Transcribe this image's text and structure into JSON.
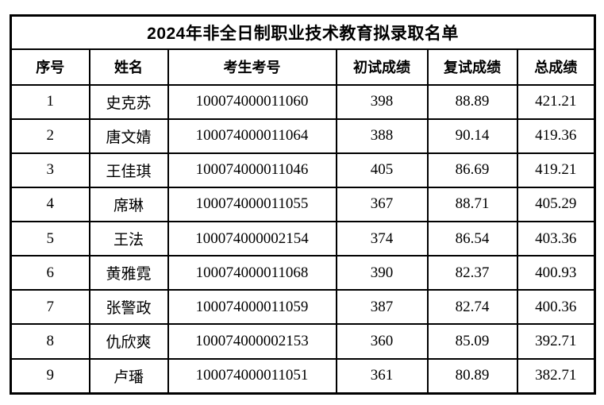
{
  "table": {
    "title": "2024年非全日制职业技术教育拟录取名单",
    "headers": [
      "序号",
      "姓名",
      "考生考号",
      "初试成绩",
      "复试成绩",
      "总成绩"
    ],
    "rows": [
      [
        "1",
        "史克苏",
        "100074000011060",
        "398",
        "88.89",
        "421.21"
      ],
      [
        "2",
        "唐文婧",
        "100074000011064",
        "388",
        "90.14",
        "419.36"
      ],
      [
        "3",
        "王佳琪",
        "100074000011046",
        "405",
        "86.69",
        "419.21"
      ],
      [
        "4",
        "席琳",
        "100074000011055",
        "367",
        "88.71",
        "405.29"
      ],
      [
        "5",
        "王法",
        "100074000002154",
        "374",
        "86.54",
        "403.36"
      ],
      [
        "6",
        "黄雅霓",
        "100074000011068",
        "390",
        "82.37",
        "400.93"
      ],
      [
        "7",
        "张警政",
        "100074000011059",
        "387",
        "82.74",
        "400.36"
      ],
      [
        "8",
        "仇欣爽",
        "100074000002153",
        "360",
        "85.09",
        "392.71"
      ],
      [
        "9",
        "卢璠",
        "100074000011051",
        "361",
        "80.89",
        "382.71"
      ]
    ],
    "colors": {
      "border": "#000000",
      "text": "#000000",
      "background": "#ffffff"
    }
  }
}
